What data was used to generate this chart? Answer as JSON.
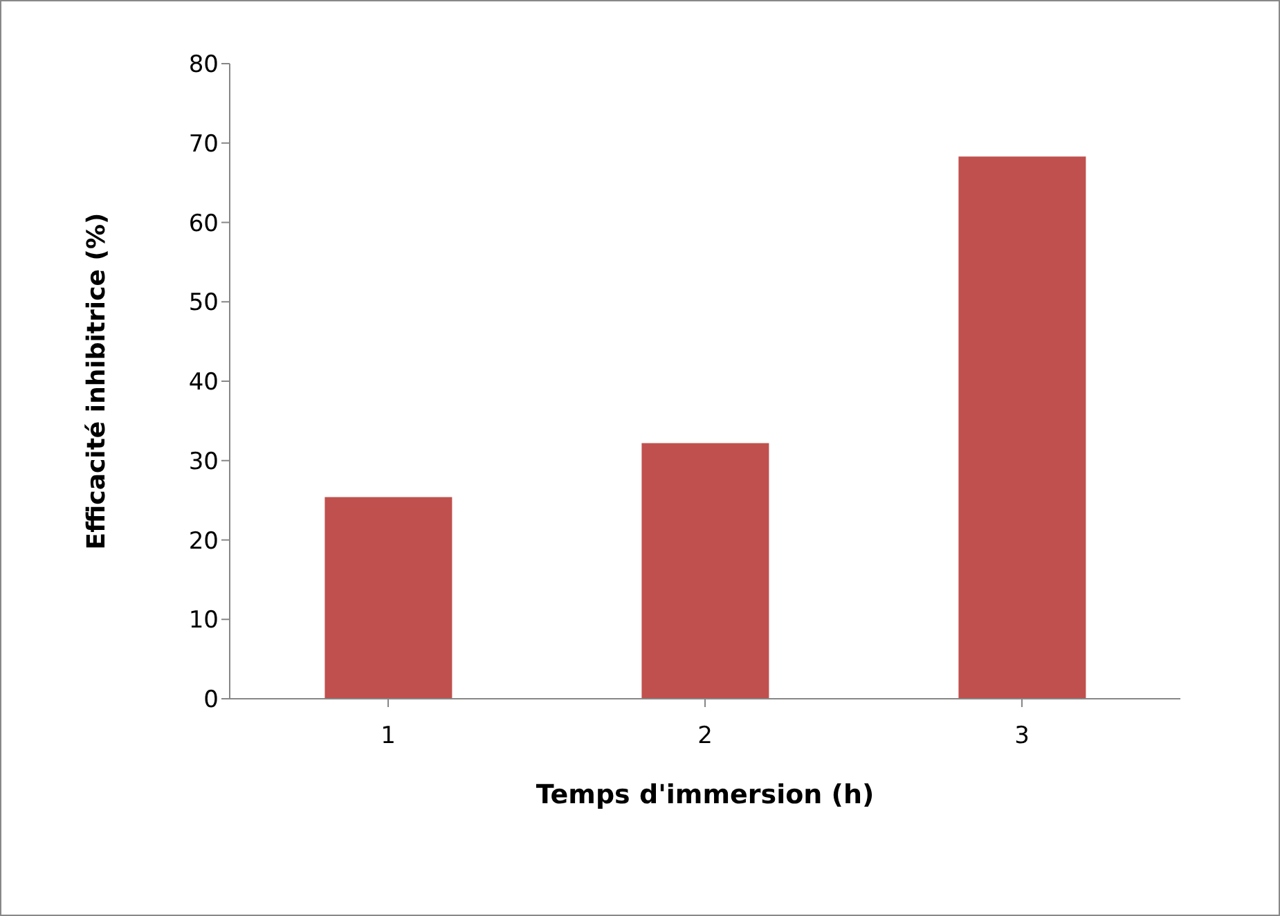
{
  "chart_data": {
    "type": "bar",
    "xlabel": "Temps d'immersion (h)",
    "ylabel": "Efficacité inhibitrice (%)",
    "categories": [
      "1",
      "2",
      "3"
    ],
    "values": [
      25.4,
      32.2,
      68.3
    ],
    "color": "#c0504d",
    "ylim": [
      0,
      80
    ],
    "yticks": [
      0,
      10,
      20,
      30,
      40,
      50,
      60,
      70,
      80
    ],
    "grid": false,
    "legend": false
  }
}
